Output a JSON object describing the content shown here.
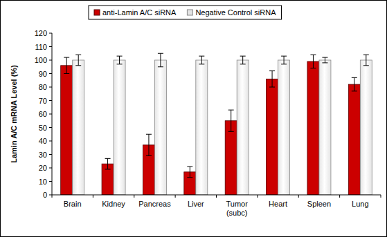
{
  "chart_data": {
    "type": "bar",
    "y_label": "Lamin A/C mRNA Level (%)",
    "categories": [
      "Brain",
      "Kidney",
      "Pancreas",
      "Liver",
      "Tumor (subc)",
      "Heart",
      "Spleen",
      "Lung"
    ],
    "series": [
      {
        "name": "anti-Lamin A/C siRNA",
        "color": "#cc0000",
        "values": [
          96,
          23,
          37,
          17,
          55,
          86,
          99,
          82
        ],
        "errors": [
          6,
          4,
          8,
          4,
          8,
          6,
          5,
          5
        ]
      },
      {
        "name": "Negative Control siRNA",
        "color": "#e4e4e4",
        "values": [
          100,
          100,
          100,
          100,
          100,
          100,
          100,
          100
        ],
        "errors": [
          4,
          3,
          5,
          3,
          3,
          3,
          2,
          4
        ]
      }
    ],
    "ylim": [
      0,
      120
    ],
    "yticks": [
      0,
      10,
      20,
      30,
      40,
      50,
      60,
      70,
      80,
      90,
      100,
      110,
      120
    ],
    "grid": false,
    "legend": "top"
  }
}
